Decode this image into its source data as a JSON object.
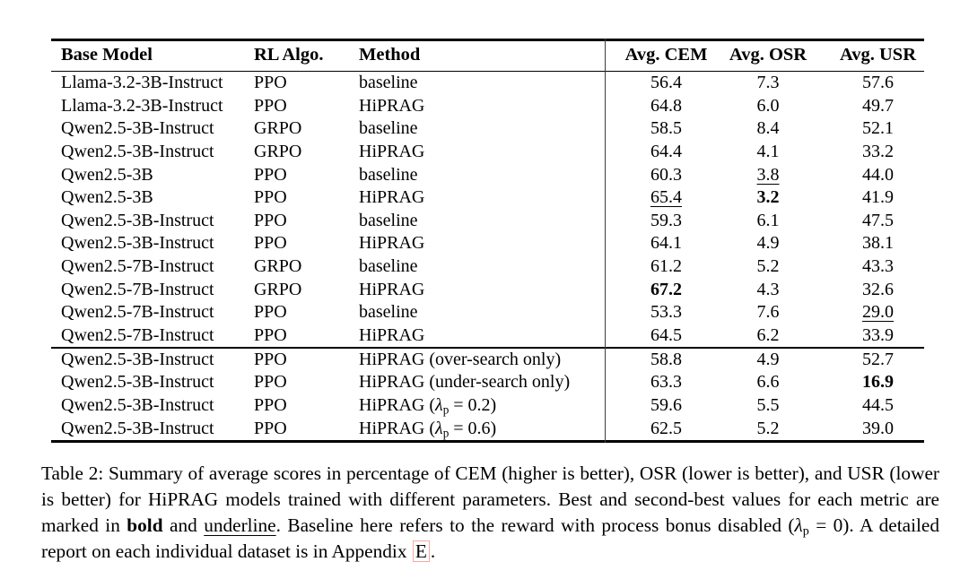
{
  "table": {
    "columns": [
      "Base Model",
      "RL Algo.",
      "Method",
      "Avg. CEM",
      "Avg. OSR",
      "Avg. USR"
    ],
    "rows_main": [
      {
        "base_model": "Llama-3.2-3B-Instruct",
        "rl_algo": "PPO",
        "method": "baseline",
        "cem": {
          "v": "56.4"
        },
        "osr": {
          "v": "7.3"
        },
        "usr": {
          "v": "57.6"
        }
      },
      {
        "base_model": "Llama-3.2-3B-Instruct",
        "rl_algo": "PPO",
        "method": "HiPRAG",
        "cem": {
          "v": "64.8"
        },
        "osr": {
          "v": "6.0"
        },
        "usr": {
          "v": "49.7"
        }
      },
      {
        "base_model": "Qwen2.5-3B-Instruct",
        "rl_algo": "GRPO",
        "method": "baseline",
        "cem": {
          "v": "58.5"
        },
        "osr": {
          "v": "8.4"
        },
        "usr": {
          "v": "52.1"
        }
      },
      {
        "base_model": "Qwen2.5-3B-Instruct",
        "rl_algo": "GRPO",
        "method": "HiPRAG",
        "cem": {
          "v": "64.4"
        },
        "osr": {
          "v": "4.1"
        },
        "usr": {
          "v": "33.2"
        }
      },
      {
        "base_model": "Qwen2.5-3B",
        "rl_algo": "PPO",
        "method": "baseline",
        "cem": {
          "v": "60.3"
        },
        "osr": {
          "v": "3.8",
          "s": "underline"
        },
        "usr": {
          "v": "44.0"
        }
      },
      {
        "base_model": "Qwen2.5-3B",
        "rl_algo": "PPO",
        "method": "HiPRAG",
        "cem": {
          "v": "65.4",
          "s": "underline"
        },
        "osr": {
          "v": "3.2",
          "s": "bold"
        },
        "usr": {
          "v": "41.9"
        }
      },
      {
        "base_model": "Qwen2.5-3B-Instruct",
        "rl_algo": "PPO",
        "method": "baseline",
        "cem": {
          "v": "59.3"
        },
        "osr": {
          "v": "6.1"
        },
        "usr": {
          "v": "47.5"
        }
      },
      {
        "base_model": "Qwen2.5-3B-Instruct",
        "rl_algo": "PPO",
        "method": "HiPRAG",
        "cem": {
          "v": "64.1"
        },
        "osr": {
          "v": "4.9"
        },
        "usr": {
          "v": "38.1"
        }
      },
      {
        "base_model": "Qwen2.5-7B-Instruct",
        "rl_algo": "GRPO",
        "method": "baseline",
        "cem": {
          "v": "61.2"
        },
        "osr": {
          "v": "5.2"
        },
        "usr": {
          "v": "43.3"
        }
      },
      {
        "base_model": "Qwen2.5-7B-Instruct",
        "rl_algo": "GRPO",
        "method": "HiPRAG",
        "cem": {
          "v": "67.2",
          "s": "bold"
        },
        "osr": {
          "v": "4.3"
        },
        "usr": {
          "v": "32.6"
        }
      },
      {
        "base_model": "Qwen2.5-7B-Instruct",
        "rl_algo": "PPO",
        "method": "baseline",
        "cem": {
          "v": "53.3"
        },
        "osr": {
          "v": "7.6"
        },
        "usr": {
          "v": "29.0",
          "s": "underline"
        }
      },
      {
        "base_model": "Qwen2.5-7B-Instruct",
        "rl_algo": "PPO",
        "method": "HiPRAG",
        "cem": {
          "v": "64.5"
        },
        "osr": {
          "v": "6.2"
        },
        "usr": {
          "v": "33.9"
        }
      }
    ],
    "rows_ablation": [
      {
        "base_model": "Qwen2.5-3B-Instruct",
        "rl_algo": "PPO",
        "method": "HiPRAG (over-search only)",
        "cem": {
          "v": "58.8"
        },
        "osr": {
          "v": "4.9"
        },
        "usr": {
          "v": "52.7"
        }
      },
      {
        "base_model": "Qwen2.5-3B-Instruct",
        "rl_algo": "PPO",
        "method": "HiPRAG (under-search only)",
        "cem": {
          "v": "63.3"
        },
        "osr": {
          "v": "6.6"
        },
        "usr": {
          "v": "16.9",
          "s": "bold"
        }
      },
      {
        "base_model": "Qwen2.5-3B-Instruct",
        "rl_algo": "PPO",
        "method": "HiPRAG (λp = 0.2)",
        "cem": {
          "v": "59.6"
        },
        "osr": {
          "v": "5.5"
        },
        "usr": {
          "v": "44.5"
        }
      },
      {
        "base_model": "Qwen2.5-3B-Instruct",
        "rl_algo": "PPO",
        "method": "HiPRAG (λp = 0.6)",
        "cem": {
          "v": "62.5"
        },
        "osr": {
          "v": "5.2"
        },
        "usr": {
          "v": "39.0"
        }
      }
    ]
  },
  "caption": {
    "part1": "Table 2: Summary of average scores in percentage of CEM (higher is better), OSR (lower is better), and USR (lower is better) for HiPRAG models trained with different parameters. Best and second-best values for each metric are marked in ",
    "bold_word": "bold",
    "part2": " and ",
    "underline_word": "underline",
    "part3": ". Baseline here refers to the reward with process bonus disabled (",
    "lambda": "λ",
    "lambda_sub": "p",
    "part4": " = 0). A detailed report on each individual dataset is in Appendix ",
    "appendix_ref": "E",
    "part5": "."
  },
  "colors": {
    "text": "#000000",
    "rule": "#000000",
    "link_box_border": "#f6a9a2"
  }
}
